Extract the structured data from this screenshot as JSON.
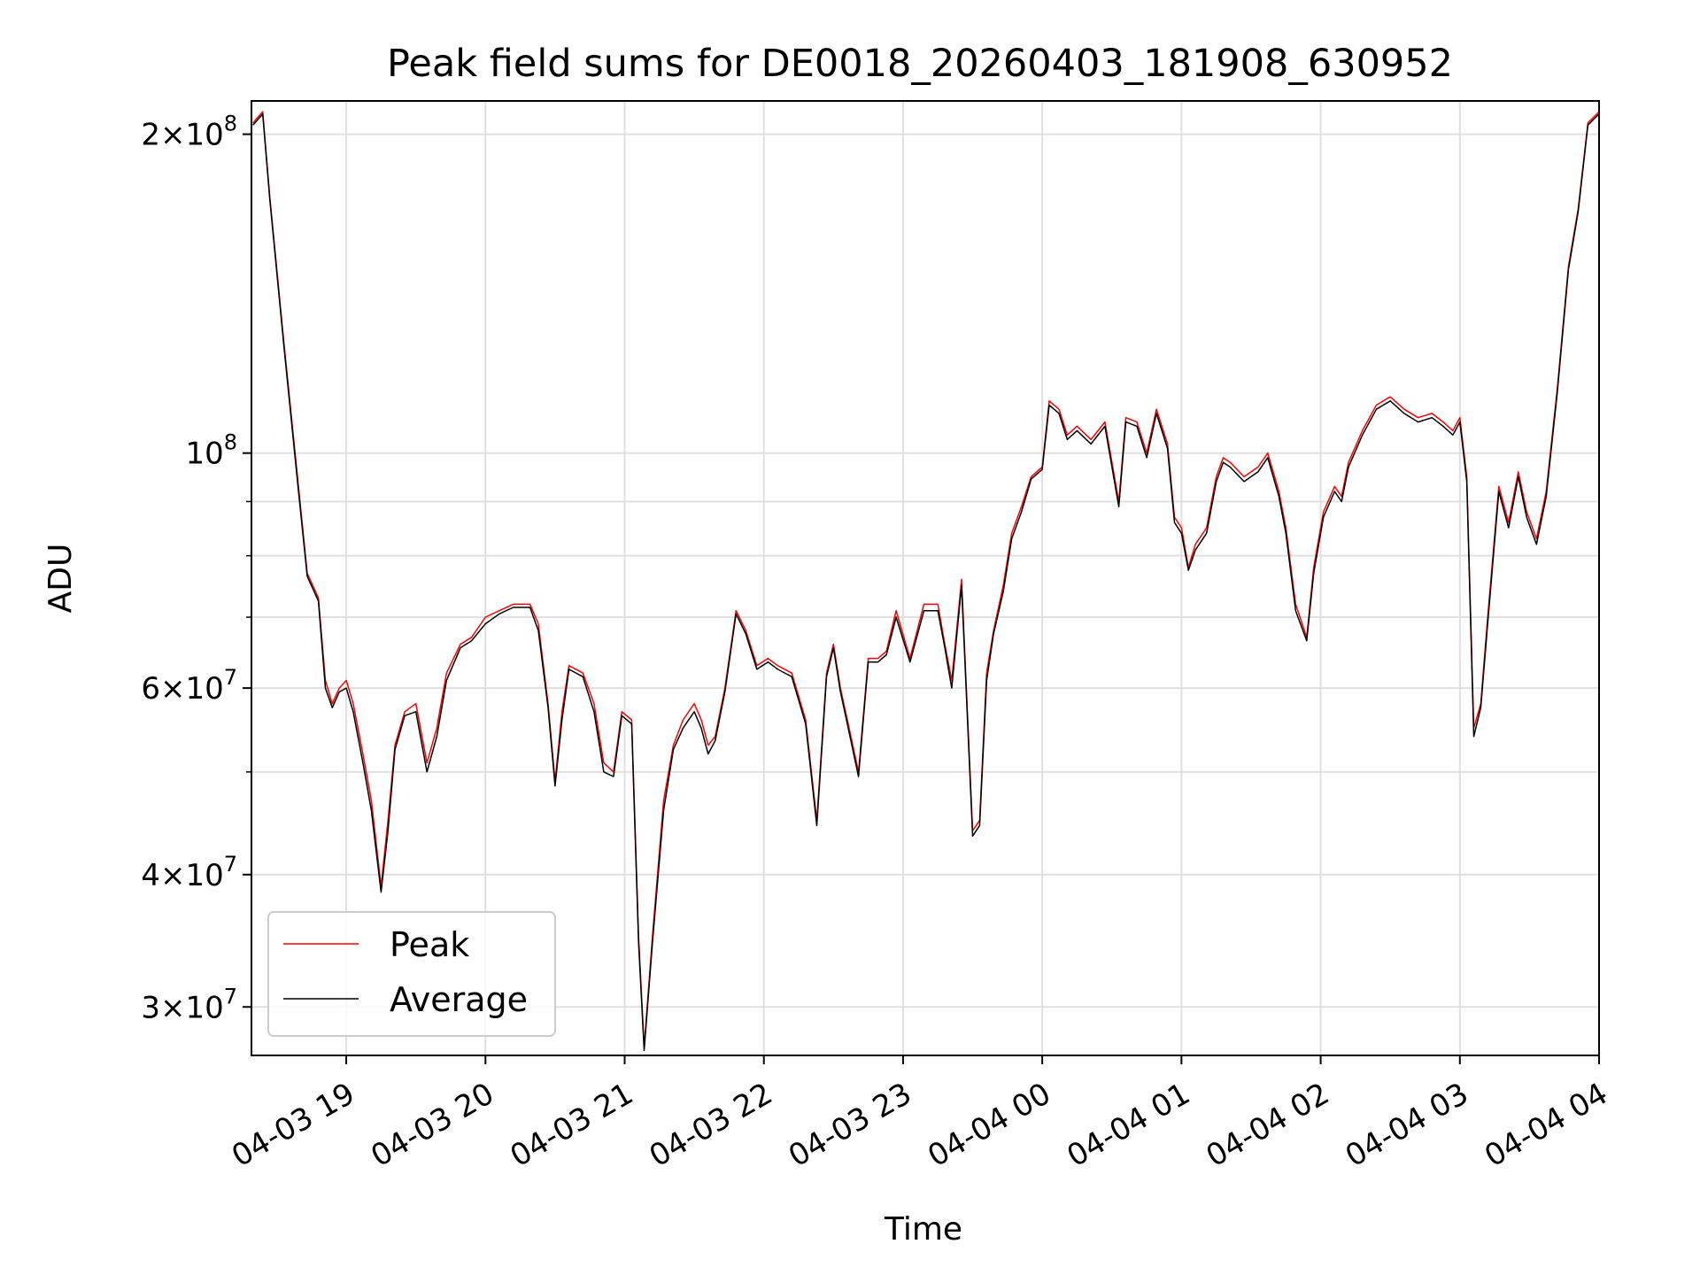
{
  "chart_data": {
    "type": "line",
    "title": "Peak field sums for DE0018_20260403_181908_630952",
    "xlabel": "Time",
    "ylabel": "ADU",
    "yscale": "log",
    "grid": true,
    "legend_position": "lower-left",
    "xlim_hours": [
      18.319,
      28.0
    ],
    "ylim": [
      27000000,
      215000000
    ],
    "x_ticks": [
      {
        "value": 19,
        "label": "04-03 19"
      },
      {
        "value": 20,
        "label": "04-03 20"
      },
      {
        "value": 21,
        "label": "04-03 21"
      },
      {
        "value": 22,
        "label": "04-03 22"
      },
      {
        "value": 23,
        "label": "04-03 23"
      },
      {
        "value": 24,
        "label": "04-04 00"
      },
      {
        "value": 25,
        "label": "04-04 01"
      },
      {
        "value": 26,
        "label": "04-04 02"
      },
      {
        "value": 27,
        "label": "04-04 03"
      },
      {
        "value": 28,
        "label": "04-04 04"
      }
    ],
    "y_ticks_major": [
      {
        "value": 30000000,
        "mant": "3",
        "exp": "7"
      },
      {
        "value": 40000000,
        "mant": "4",
        "exp": "7"
      },
      {
        "value": 60000000,
        "mant": "6",
        "exp": "7"
      },
      {
        "value": 100000000,
        "mant": "",
        "exp": "8"
      },
      {
        "value": 200000000,
        "mant": "2",
        "exp": "8"
      }
    ],
    "y_ticks_minor": [
      50000000,
      70000000,
      80000000,
      90000000
    ],
    "series": [
      {
        "name": "Peak",
        "color": "#ff0000",
        "x": [
          18.33,
          18.4,
          18.45,
          18.55,
          18.65,
          18.72,
          18.8,
          18.85,
          18.9,
          18.95,
          19.0,
          19.05,
          19.12,
          19.18,
          19.25,
          19.3,
          19.35,
          19.42,
          19.5,
          19.58,
          19.65,
          19.72,
          19.82,
          19.9,
          20.0,
          20.1,
          20.2,
          20.32,
          20.38,
          20.45,
          20.5,
          20.55,
          20.6,
          20.7,
          20.78,
          20.85,
          20.92,
          20.98,
          21.05,
          21.1,
          21.14,
          21.2,
          21.28,
          21.35,
          21.42,
          21.5,
          21.55,
          21.6,
          21.65,
          21.72,
          21.8,
          21.87,
          21.95,
          22.03,
          22.1,
          22.2,
          22.3,
          22.38,
          22.45,
          22.5,
          22.55,
          22.6,
          22.68,
          22.75,
          22.82,
          22.88,
          22.95,
          23.05,
          23.15,
          23.25,
          23.3,
          23.35,
          23.42,
          23.5,
          23.55,
          23.6,
          23.65,
          23.72,
          23.78,
          23.85,
          23.92,
          24.0,
          24.05,
          24.12,
          24.18,
          24.25,
          24.35,
          24.45,
          24.55,
          24.6,
          24.68,
          24.75,
          24.82,
          24.9,
          24.95,
          25.0,
          25.05,
          25.1,
          25.18,
          25.25,
          25.3,
          25.35,
          25.45,
          25.55,
          25.62,
          25.7,
          25.75,
          25.82,
          25.9,
          25.95,
          26.02,
          26.1,
          26.15,
          26.2,
          26.3,
          26.4,
          26.5,
          26.6,
          26.7,
          26.8,
          26.88,
          26.95,
          27.0,
          27.05,
          27.1,
          27.15,
          27.2,
          27.28,
          27.35,
          27.42,
          27.48,
          27.55,
          27.62,
          27.7,
          27.78,
          27.85,
          27.92,
          28.0
        ],
        "y": [
          205000000,
          210000000,
          175000000,
          128000000,
          95000000,
          77000000,
          73000000,
          61000000,
          58000000,
          60000000,
          61000000,
          58000000,
          52000000,
          47000000,
          39000000,
          45000000,
          53000000,
          57000000,
          58000000,
          51000000,
          55000000,
          62000000,
          66000000,
          67000000,
          70000000,
          71000000,
          72000000,
          72000000,
          69000000,
          58000000,
          49000000,
          57000000,
          63000000,
          62000000,
          58000000,
          51000000,
          50000000,
          57000000,
          56000000,
          35000000,
          27500000,
          35000000,
          47000000,
          53000000,
          56000000,
          58000000,
          56000000,
          53000000,
          54000000,
          60000000,
          71000000,
          68000000,
          63000000,
          64000000,
          63000000,
          62000000,
          56000000,
          45000000,
          62000000,
          66000000,
          60000000,
          56000000,
          50000000,
          64000000,
          64000000,
          65000000,
          71000000,
          64000000,
          72000000,
          72000000,
          66000000,
          61000000,
          76000000,
          44000000,
          45000000,
          62000000,
          68000000,
          75000000,
          84000000,
          89000000,
          95000000,
          97000000,
          112000000,
          110000000,
          104000000,
          106000000,
          103000000,
          107000000,
          90000000,
          108000000,
          107000000,
          100000000,
          110000000,
          102000000,
          87000000,
          85000000,
          78000000,
          82000000,
          85000000,
          95000000,
          99000000,
          98000000,
          95000000,
          97000000,
          100000000,
          92000000,
          85000000,
          72000000,
          67000000,
          78000000,
          88000000,
          93000000,
          91000000,
          98000000,
          105000000,
          111000000,
          113000000,
          110000000,
          108000000,
          109000000,
          107000000,
          105000000,
          108000000,
          95000000,
          55000000,
          58000000,
          70000000,
          93000000,
          86000000,
          96000000,
          88000000,
          83000000,
          92000000,
          115000000,
          150000000,
          170000000,
          205000000,
          210000000
        ]
      },
      {
        "name": "Average",
        "color": "#000000",
        "x": [
          18.33,
          18.4,
          18.45,
          18.55,
          18.65,
          18.72,
          18.8,
          18.85,
          18.9,
          18.95,
          19.0,
          19.05,
          19.12,
          19.18,
          19.25,
          19.3,
          19.35,
          19.42,
          19.5,
          19.58,
          19.65,
          19.72,
          19.82,
          19.9,
          20.0,
          20.1,
          20.2,
          20.32,
          20.38,
          20.45,
          20.5,
          20.55,
          20.6,
          20.7,
          20.78,
          20.85,
          20.92,
          20.98,
          21.05,
          21.1,
          21.14,
          21.2,
          21.28,
          21.35,
          21.42,
          21.5,
          21.55,
          21.6,
          21.65,
          21.72,
          21.8,
          21.87,
          21.95,
          22.03,
          22.1,
          22.2,
          22.3,
          22.38,
          22.45,
          22.5,
          22.55,
          22.6,
          22.68,
          22.75,
          22.82,
          22.88,
          22.95,
          23.05,
          23.15,
          23.25,
          23.3,
          23.35,
          23.42,
          23.5,
          23.55,
          23.6,
          23.65,
          23.72,
          23.78,
          23.85,
          23.92,
          24.0,
          24.05,
          24.12,
          24.18,
          24.25,
          24.35,
          24.45,
          24.55,
          24.6,
          24.68,
          24.75,
          24.82,
          24.9,
          24.95,
          25.0,
          25.05,
          25.1,
          25.18,
          25.25,
          25.3,
          25.35,
          25.45,
          25.55,
          25.62,
          25.7,
          25.75,
          25.82,
          25.9,
          25.95,
          26.02,
          26.1,
          26.15,
          26.2,
          26.3,
          26.4,
          26.5,
          26.6,
          26.7,
          26.8,
          26.88,
          26.95,
          27.0,
          27.05,
          27.1,
          27.15,
          27.2,
          27.28,
          27.35,
          27.42,
          27.48,
          27.55,
          27.62,
          27.7,
          27.78,
          27.85,
          27.92,
          28.0
        ],
        "y": [
          204000000,
          209000000,
          174000000,
          127000000,
          94000000,
          76500000,
          72500000,
          60000000,
          57500000,
          59500000,
          60000000,
          57000000,
          51000000,
          46000000,
          38500000,
          44000000,
          52500000,
          56500000,
          57000000,
          50000000,
          54000000,
          61000000,
          65500000,
          66500000,
          69000000,
          70500000,
          71500000,
          71500000,
          68000000,
          57500000,
          48500000,
          56000000,
          62500000,
          61500000,
          57000000,
          50000000,
          49500000,
          56500000,
          55500000,
          34500000,
          27300000,
          34500000,
          46000000,
          52500000,
          55000000,
          57000000,
          55000000,
          52000000,
          53500000,
          59500000,
          70500000,
          67500000,
          62500000,
          63500000,
          62500000,
          61500000,
          55500000,
          44500000,
          61500000,
          65500000,
          59500000,
          55500000,
          49500000,
          63500000,
          63500000,
          64500000,
          70000000,
          63500000,
          71000000,
          71000000,
          65500000,
          60000000,
          75000000,
          43500000,
          44500000,
          61000000,
          67500000,
          74000000,
          83000000,
          88000000,
          94500000,
          96500000,
          111000000,
          109000000,
          103000000,
          105000000,
          102000000,
          106000000,
          89000000,
          107000000,
          106000000,
          99000000,
          109000000,
          101000000,
          86000000,
          84000000,
          77500000,
          81000000,
          84000000,
          94000000,
          98000000,
          97000000,
          94000000,
          96000000,
          99000000,
          91000000,
          84000000,
          71000000,
          66500000,
          77000000,
          87000000,
          92000000,
          90000000,
          97000000,
          104000000,
          110000000,
          112000000,
          109000000,
          107000000,
          108000000,
          106000000,
          104000000,
          107000000,
          94000000,
          54000000,
          57500000,
          69000000,
          92000000,
          85000000,
          95000000,
          87000000,
          82000000,
          91000000,
          114000000,
          149000000,
          169000000,
          204000000,
          209000000
        ]
      }
    ]
  }
}
